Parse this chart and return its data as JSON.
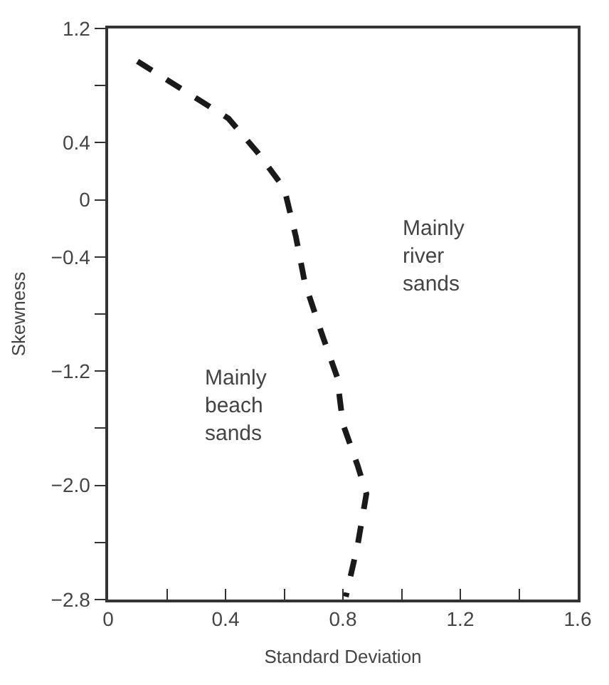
{
  "chart_data": {
    "type": "line",
    "xlabel": "Standard Deviation",
    "ylabel": "Skewness",
    "x": [
      0.1,
      0.27,
      0.41,
      0.51,
      0.6,
      0.64,
      0.67,
      0.73,
      0.78,
      0.8,
      0.85,
      0.88,
      0.85,
      0.81
    ],
    "series": [
      {
        "color": "#1a1a1a",
        "values": [
          0.97,
          0.75,
          0.57,
          0.33,
          0.08,
          -0.26,
          -0.58,
          -0.95,
          -1.24,
          -1.57,
          -1.86,
          -2.06,
          -2.42,
          -2.78
        ]
      }
    ],
    "xlim": [
      0,
      1.6
    ],
    "ylim": [
      -2.8,
      1.2
    ],
    "xticks": [
      0,
      {
        "value": 0.2,
        "label": null
      },
      0.4,
      {
        "value": 0.6,
        "label": null
      },
      0.8,
      {
        "value": 1.0,
        "label": null
      },
      1.2,
      {
        "value": 1.4,
        "label": null
      },
      1.6
    ],
    "yticks": [
      -2.8,
      {
        "value": -2.4,
        "label": null
      },
      {
        "value": -2.0,
        "label": "−2.0"
      },
      {
        "value": -1.6,
        "label": null
      },
      -1.2,
      {
        "value": -0.8,
        "label": null
      },
      -0.4,
      0,
      0.4,
      {
        "value": 0.8,
        "label": null
      },
      1.2
    ],
    "annotations": [
      "Mainly\nbeach\nsands",
      "Mainly\nriver\nsands"
    ],
    "line_style": "dashed",
    "marker": "none",
    "legend": false
  }
}
